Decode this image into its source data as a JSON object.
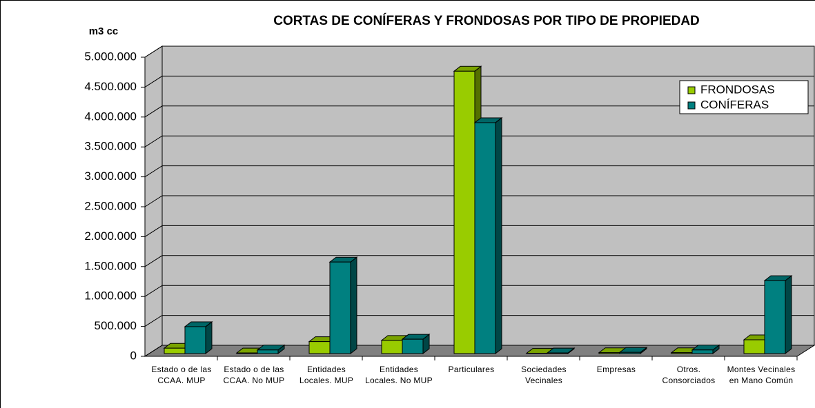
{
  "chart_data": {
    "type": "bar3d",
    "title": "CORTAS DE CONÍFERAS Y FRONDOSAS POR TIPO DE PROPIEDAD",
    "y_label": "m3 cc",
    "categories": [
      "Estado o de las CCAA. MUP",
      "Estado o de las CCAA. No MUP",
      "Entidades Locales. MUP",
      "Entidades Locales. No MUP",
      "Particulares",
      "Sociedades Vecinales",
      "Empresas",
      "Otros. Consorciados",
      "Montes Vecinales en Mano Común"
    ],
    "series": [
      {
        "name": "FRONDOSAS",
        "color": "#99cc00",
        "values": [
          90000,
          10000,
          200000,
          220000,
          4720000,
          5000,
          15000,
          15000,
          230000
        ]
      },
      {
        "name": "CONÍFERAS",
        "color": "#008080",
        "values": [
          450000,
          60000,
          1530000,
          240000,
          3860000,
          10000,
          20000,
          60000,
          1220000
        ]
      }
    ],
    "ylim": [
      0,
      5000000
    ],
    "yticks": [
      0,
      {
        "value": 500000,
        "label": "500.000"
      },
      {
        "value": 1000000,
        "label": "1.000.000"
      },
      {
        "value": 1500000,
        "label": "1.500.000"
      },
      {
        "value": 2000000,
        "label": "2.000.000"
      },
      {
        "value": 2500000,
        "label": "2.500.000"
      },
      {
        "value": 3000000,
        "label": "3.000.000"
      },
      {
        "value": 3500000,
        "label": "3.500.000"
      },
      {
        "value": 4000000,
        "label": "4.000.000"
      },
      {
        "value": 4500000,
        "label": "4.500.000"
      },
      {
        "value": 5000000,
        "label": "5.000.000"
      }
    ],
    "grid": true,
    "legend": "top-right"
  }
}
